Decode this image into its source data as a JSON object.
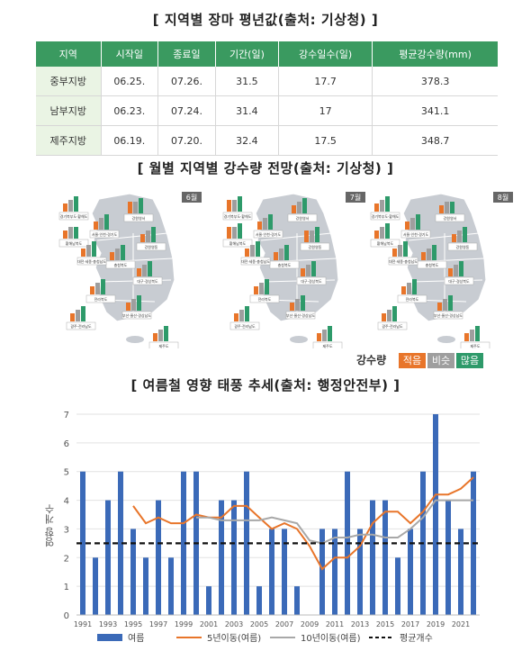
{
  "section1": {
    "title": "[ 지역별 장마 평년값(출처: 기상청) ]"
  },
  "table": {
    "headers": [
      "지역",
      "시작일",
      "종료일",
      "기간(일)",
      "강수일수(일)",
      "평균강수량(mm)"
    ],
    "rows": [
      [
        "중부지방",
        "06.25.",
        "07.26.",
        "31.5",
        "17.7",
        "378.3"
      ],
      [
        "남부지방",
        "06.23.",
        "07.24.",
        "31.4",
        "17",
        "341.1"
      ],
      [
        "제주지방",
        "06.19.",
        "07.20.",
        "32.4",
        "17.5",
        "348.7"
      ]
    ]
  },
  "section2": {
    "title": "[ 월별 지역별 강수량 전망(출처: 기상청) ]"
  },
  "maps": [
    {
      "month": "6월",
      "regions": [
        "경기북부도·황해도",
        "황해남북도",
        "강원영서",
        "서울·인천·경기도",
        "강원영동",
        "충청북도",
        "대전·세종·충청남도",
        "대구·경상북도",
        "전라북도",
        "광주·전라남도",
        "부산·울산·경상남도",
        "제주도"
      ]
    },
    {
      "month": "7월",
      "regions": [
        "경기북부도·황해도",
        "황해남북도",
        "강원영서",
        "서울·인천·경기도",
        "강원영동",
        "충청북도",
        "대전·세종·충청남도",
        "대구·경상북도",
        "전라북도",
        "광주·전라남도",
        "부산·울산·경상남도",
        "제주도"
      ]
    },
    {
      "month": "8월",
      "regions": [
        "경기북부도·황해도",
        "황해남북도",
        "강원영서",
        "서울·인천·경기도",
        "강원영동",
        "충청북도",
        "대전·세종·충청남도",
        "대구·경상북도",
        "전라북도",
        "광주·전라남도",
        "부산·울산·경상남도",
        "제주도"
      ]
    }
  ],
  "precip_legend": {
    "label": "강수량",
    "items": [
      {
        "label": "적음",
        "color": "#e8752a"
      },
      {
        "label": "비슷",
        "color": "#9e9e9e"
      },
      {
        "label": "많음",
        "color": "#2e9a6a"
      }
    ]
  },
  "section3": {
    "title": "[ 여름철 영향 태풍 추세(출처: 행정안전부) ]"
  },
  "chart_data": {
    "type": "bar",
    "ylabel": "영향 개수",
    "ylim": [
      0,
      7
    ],
    "yticks": [
      0,
      1,
      2,
      3,
      4,
      5,
      6,
      7
    ],
    "x": [
      1991,
      1992,
      1993,
      1994,
      1995,
      1996,
      1997,
      1998,
      1999,
      2000,
      2001,
      2002,
      2003,
      2004,
      2005,
      2006,
      2007,
      2008,
      2009,
      2010,
      2011,
      2012,
      2013,
      2014,
      2015,
      2016,
      2017,
      2018,
      2019,
      2020,
      2021,
      2022
    ],
    "xtick_labels": [
      "1991",
      "1993",
      "1995",
      "1997",
      "1999",
      "2001",
      "2003",
      "2005",
      "2007",
      "2009",
      "2011",
      "2013",
      "2015",
      "2017",
      "2019",
      "2021"
    ],
    "series": [
      {
        "name": "여름",
        "kind": "bar",
        "color": "#3b6ab8",
        "values": [
          5,
          2,
          4,
          5,
          3,
          2,
          4,
          2,
          5,
          5,
          1,
          4,
          4,
          5,
          1,
          3,
          3,
          1,
          0,
          3,
          3,
          5,
          3,
          4,
          4,
          2,
          3,
          5,
          7,
          4,
          3,
          5
        ]
      },
      {
        "name": "5년이동(여름)",
        "kind": "line",
        "color": "#e8752a",
        "values": [
          null,
          null,
          null,
          null,
          3.8,
          3.2,
          3.4,
          3.2,
          3.2,
          3.5,
          3.4,
          3.4,
          3.8,
          3.8,
          3.4,
          3.0,
          3.2,
          3.0,
          2.4,
          1.6,
          2.0,
          2.0,
          2.4,
          3.2,
          3.6,
          3.6,
          3.2,
          3.6,
          4.2,
          4.2,
          4.4,
          4.8
        ]
      },
      {
        "name": "10년이동(여름)",
        "kind": "line",
        "color": "#a8a8a8",
        "values": [
          null,
          null,
          null,
          null,
          null,
          null,
          null,
          null,
          null,
          3.4,
          3.4,
          3.3,
          3.3,
          3.3,
          3.3,
          3.4,
          3.3,
          3.2,
          2.6,
          2.5,
          2.7,
          2.7,
          2.8,
          2.8,
          2.7,
          2.7,
          3.0,
          3.4,
          4.0,
          4.0,
          4.0,
          4.0
        ]
      },
      {
        "name": "평균개수",
        "kind": "hline",
        "color": "#111111",
        "value": 2.5
      }
    ],
    "legend": "bottom"
  }
}
